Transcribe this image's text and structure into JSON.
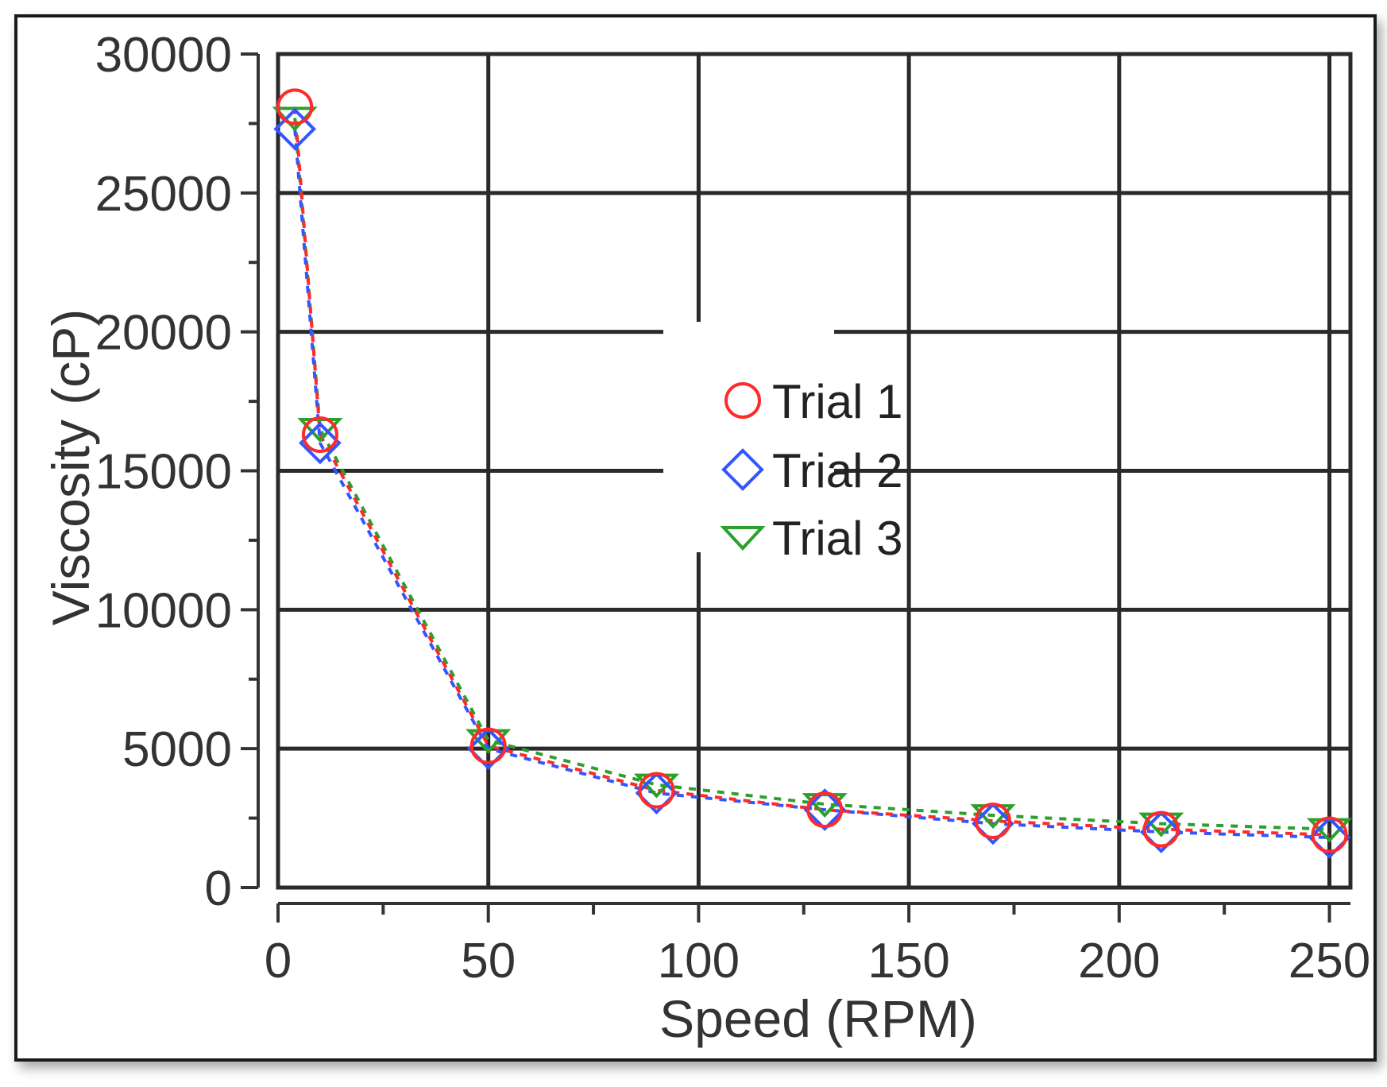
{
  "chart_data": {
    "type": "scatter",
    "xlabel": "Speed (RPM)",
    "ylabel": "Viscosity (cP)",
    "xlim": [
      0,
      255
    ],
    "ylim": [
      0,
      30000
    ],
    "x_ticks": [
      0,
      50,
      100,
      150,
      200,
      250
    ],
    "y_ticks": [
      0,
      5000,
      10000,
      15000,
      20000,
      25000,
      30000
    ],
    "x_tick_labels": [
      "0",
      "50",
      "100",
      "150",
      "200",
      "250"
    ],
    "y_tick_labels": [
      "0",
      "5000",
      "10000",
      "15000",
      "20000",
      "25000",
      "30000"
    ],
    "grid": true,
    "legend_position": "center",
    "series": [
      {
        "name": "Trial 1",
        "marker": "circle",
        "color": "#ff2a2a",
        "x": [
          4,
          10,
          50,
          90,
          130,
          170,
          210,
          250
        ],
        "y": [
          28100,
          16300,
          5100,
          3500,
          2800,
          2400,
          2100,
          1900
        ]
      },
      {
        "name": "Trial 2",
        "marker": "diamond",
        "color": "#3355ff",
        "x": [
          4,
          10,
          50,
          90,
          130,
          170,
          210,
          250
        ],
        "y": [
          27300,
          16000,
          5000,
          3400,
          2800,
          2300,
          2000,
          1800
        ]
      },
      {
        "name": "Trial 3",
        "marker": "triangle-down",
        "color": "#2ca02c",
        "x": [
          4,
          10,
          50,
          90,
          130,
          170,
          210,
          250
        ],
        "y": [
          27700,
          16500,
          5300,
          3700,
          3000,
          2600,
          2300,
          2100
        ]
      }
    ]
  }
}
